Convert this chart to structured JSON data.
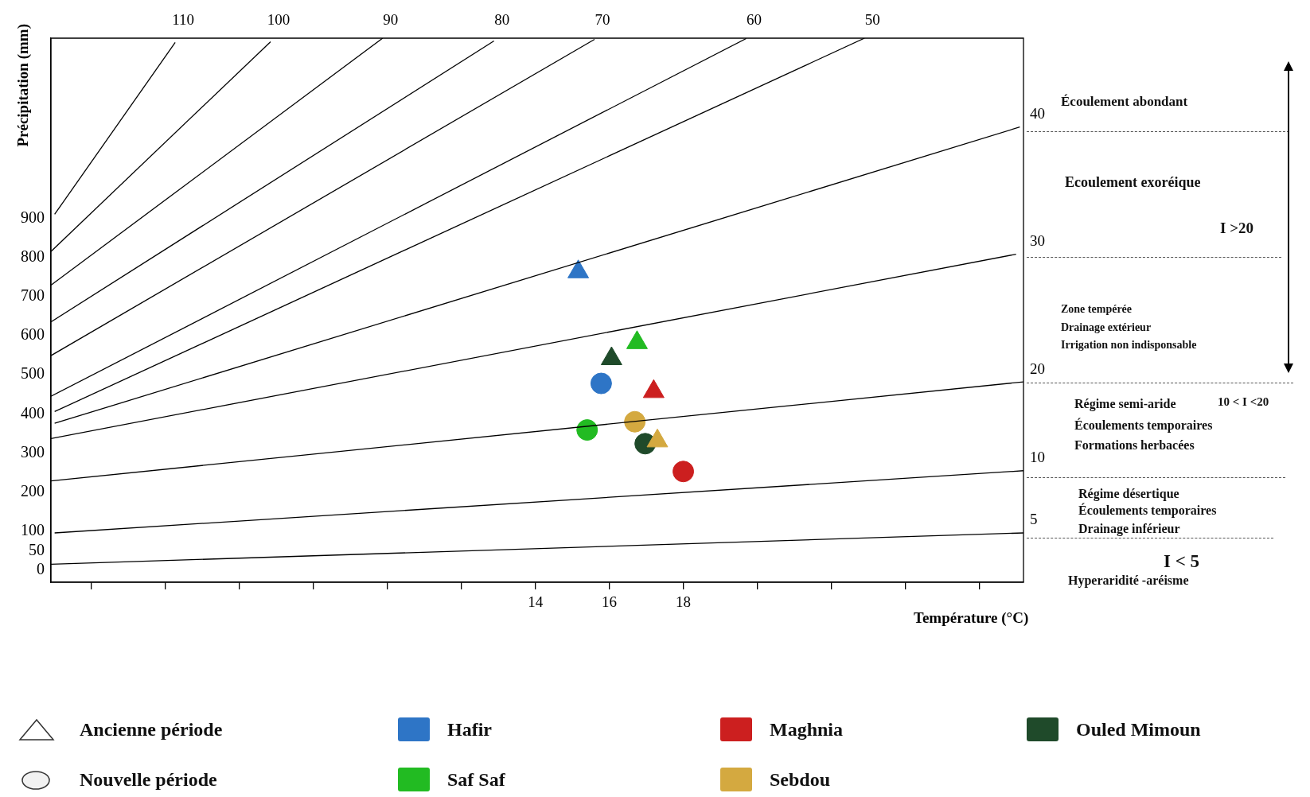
{
  "chart_data": {
    "type": "scatter",
    "xlabel": "Température (°C)",
    "ylabel": "Précipitation (mm)",
    "xlim": [
      0.9,
      27.2
    ],
    "ylim": [
      -30,
      1360
    ],
    "xticks": [
      {
        "value": 2,
        "label": null
      },
      {
        "value": 4,
        "label": null
      },
      {
        "value": 6,
        "label": null
      },
      {
        "value": 8,
        "label": null
      },
      {
        "value": 10,
        "label": null
      },
      {
        "value": 12,
        "label": null
      },
      14,
      16,
      18,
      {
        "value": 20,
        "label": null
      },
      {
        "value": 22,
        "label": null
      },
      {
        "value": 24,
        "label": null
      },
      {
        "value": 26,
        "label": null
      }
    ],
    "yticks": [
      0,
      50,
      100,
      200,
      300,
      400,
      500,
      600,
      700,
      800,
      900
    ],
    "grid": false,
    "legend": "bottom",
    "series": [
      {
        "name": "110",
        "type": "line",
        "color": "#000000",
        "marker": "none",
        "x": [
          1.0,
          4.26
        ],
        "values": [
          910,
          1349
        ]
      },
      {
        "name": "100",
        "type": "line",
        "color": "#000000",
        "marker": "none",
        "x": [
          0.9,
          6.84
        ],
        "values": [
          815,
          1351
        ]
      },
      {
        "name": "90",
        "type": "line",
        "color": "#000000",
        "marker": "none",
        "x": [
          0.9,
          9.87
        ],
        "values": [
          729,
          1360
        ]
      },
      {
        "name": "80",
        "type": "line",
        "color": "#000000",
        "marker": "none",
        "x": [
          0.9,
          12.88
        ],
        "values": [
          635,
          1353
        ]
      },
      {
        "name": "70",
        "type": "line",
        "color": "#000000",
        "marker": "none",
        "x": [
          0.9,
          15.6
        ],
        "values": [
          549,
          1357
        ]
      },
      {
        "name": "60",
        "type": "line",
        "color": "#000000",
        "marker": "none",
        "x": [
          0.9,
          19.7
        ],
        "values": [
          445,
          1359
        ]
      },
      {
        "name": "50",
        "type": "line",
        "color": "#000000",
        "marker": "none",
        "x": [
          1.0,
          22.9
        ],
        "values": [
          406,
          1360
        ]
      },
      {
        "name": "40",
        "type": "line",
        "color": "#000000",
        "marker": "none",
        "x": [
          1.0,
          27.1
        ],
        "values": [
          376,
          1133
        ]
      },
      {
        "name": "30",
        "type": "line",
        "color": "#000000",
        "marker": "none",
        "x": [
          0.9,
          27.0
        ],
        "values": [
          337,
          808
        ]
      },
      {
        "name": "20",
        "type": "line",
        "color": "#000000",
        "marker": "none",
        "x": [
          0.9,
          27.2
        ],
        "values": [
          229,
          482
        ]
      },
      {
        "name": "10",
        "type": "line",
        "color": "#000000",
        "marker": "none",
        "x": [
          1.0,
          27.2
        ],
        "values": [
          96,
          255
        ]
      },
      {
        "name": "5",
        "type": "line",
        "color": "#000000",
        "marker": "none",
        "x": [
          0.9,
          27.2
        ],
        "values": [
          16,
          96
        ]
      },
      {
        "name": "Hafir",
        "type": "scatter",
        "color": "#2e75c6",
        "marker": "triangle",
        "x": [
          15.16
        ],
        "values": [
          763
        ]
      },
      {
        "name": "Saf Saf",
        "type": "scatter",
        "color": "#22bb22",
        "marker": "triangle",
        "x": [
          16.75
        ],
        "values": [
          582
        ]
      },
      {
        "name": "Maghnia",
        "type": "scatter",
        "color": "#cc1f1f",
        "marker": "triangle",
        "x": [
          17.2
        ],
        "values": [
          457
        ]
      },
      {
        "name": "Sebdou",
        "type": "scatter",
        "color": "#d4a940",
        "marker": "triangle",
        "x": [
          17.3
        ],
        "values": [
          331
        ]
      },
      {
        "name": "Ouled Mimoun",
        "type": "scatter",
        "color": "#1f4a2a",
        "marker": "triangle",
        "x": [
          16.06
        ],
        "values": [
          541
        ]
      },
      {
        "type": "scatter",
        "color": "#2e75c6",
        "marker": "circle",
        "x": [
          15.78
        ],
        "values": [
          478
        ]
      },
      {
        "type": "scatter",
        "color": "#22bb22",
        "marker": "circle",
        "x": [
          15.4
        ],
        "values": [
          359
        ]
      },
      {
        "type": "scatter",
        "color": "#cc1f1f",
        "marker": "circle",
        "x": [
          18.0
        ],
        "values": [
          253
        ]
      },
      {
        "type": "scatter",
        "color": "#d4a940",
        "marker": "circle",
        "x": [
          16.69
        ],
        "values": [
          380
        ]
      },
      {
        "type": "scatter",
        "color": "#1f4a2a",
        "marker": "circle",
        "x": [
          16.97
        ],
        "values": [
          324
        ]
      }
    ],
    "annotations": [
      "Écoulement abondant",
      "Ecoulement exoréique",
      "I >20",
      "Zone tempérée",
      "Drainage extérieur",
      "Irrigation non indisponsable",
      "Régime semi-aride",
      "10 < I <20",
      "Écoulements temporaires",
      "Formations herbacées",
      "Régime désertique",
      "Écoulements temporaires",
      "Drainage inférieur",
      "I < 5",
      "Hyperaridité -aréisme",
      "Ancienne période",
      "Nouvelle période"
    ]
  }
}
